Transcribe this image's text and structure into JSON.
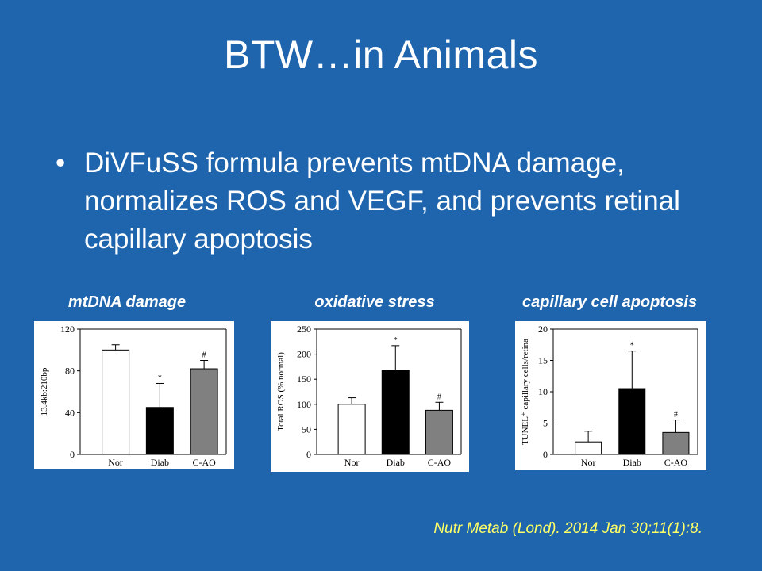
{
  "slide": {
    "title": "BTW…in Animals",
    "bullet_symbol": "•",
    "bullet_text": "DiVFuSS formula prevents mtDNA damage, normalizes ROS and VEGF, and prevents retinal capillary apoptosis",
    "citation": "Nutr Metab (Lond). 2014 Jan 30;11(1):8.",
    "colors": {
      "background": "#1f65ae",
      "text": "#ffffff",
      "citation": "#ffff66",
      "nor_bar": "#ffffff",
      "diab_bar": "#000000",
      "cao_bar": "#808080"
    }
  },
  "chart_data": [
    {
      "type": "bar",
      "title": "mtDNA damage",
      "ylabel": "13.4kb:210bp",
      "ylim": [
        0,
        120
      ],
      "yticks": [
        "0",
        "40",
        "80",
        "120"
      ],
      "categories": [
        "Nor",
        "Diab",
        "C-AO"
      ],
      "values": [
        100,
        45,
        82
      ],
      "errors": [
        5,
        23,
        8
      ],
      "annotations": [
        "",
        "*",
        "#"
      ]
    },
    {
      "type": "bar",
      "title": "oxidative stress",
      "ylabel": "Total ROS (% normal)",
      "ylim": [
        0,
        250
      ],
      "yticks": [
        "0",
        "50",
        "100",
        "150",
        "200",
        "250"
      ],
      "categories": [
        "Nor",
        "Diab",
        "C-AO"
      ],
      "values": [
        100,
        167,
        88
      ],
      "errors": [
        13,
        50,
        16
      ],
      "annotations": [
        "",
        "*",
        "#"
      ]
    },
    {
      "type": "bar",
      "title": "capillary cell apoptosis",
      "ylabel": "TUNEL⁺ capillary cells/retina",
      "ylim": [
        0,
        20
      ],
      "yticks": [
        "0",
        "5",
        "10",
        "15",
        "20"
      ],
      "categories": [
        "Nor",
        "Diab",
        "C-AO"
      ],
      "values": [
        2,
        10.5,
        3.5
      ],
      "errors": [
        1.7,
        6,
        2
      ],
      "annotations": [
        "",
        "*",
        "#"
      ]
    }
  ]
}
